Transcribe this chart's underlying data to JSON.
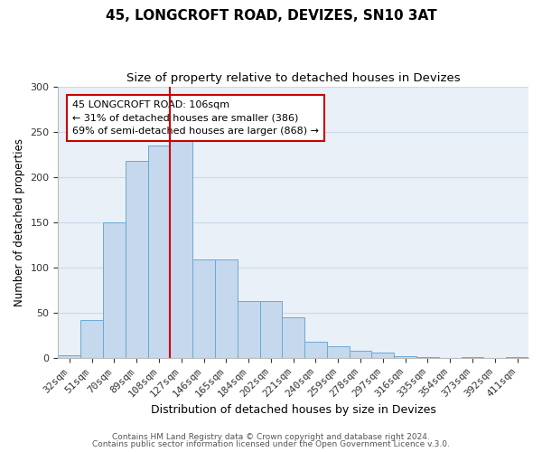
{
  "title": "45, LONGCROFT ROAD, DEVIZES, SN10 3AT",
  "subtitle": "Size of property relative to detached houses in Devizes",
  "xlabel": "Distribution of detached houses by size in Devizes",
  "ylabel": "Number of detached properties",
  "bin_labels": [
    "32sqm",
    "51sqm",
    "70sqm",
    "89sqm",
    "108sqm",
    "127sqm",
    "146sqm",
    "165sqm",
    "184sqm",
    "202sqm",
    "221sqm",
    "240sqm",
    "259sqm",
    "278sqm",
    "297sqm",
    "316sqm",
    "335sqm",
    "354sqm",
    "373sqm",
    "392sqm",
    "411sqm"
  ],
  "bar_values": [
    3,
    42,
    150,
    218,
    235,
    246,
    109,
    109,
    63,
    63,
    45,
    18,
    13,
    8,
    6,
    2,
    1,
    0,
    1,
    0,
    1
  ],
  "bar_color": "#c5d8ed",
  "bar_edge_color": "#6aaad4",
  "vline_color": "#cc0000",
  "annotation_title": "45 LONGCROFT ROAD: 106sqm",
  "annotation_line1": "← 31% of detached houses are smaller (386)",
  "annotation_line2": "69% of semi-detached houses are larger (868) →",
  "annotation_box_facecolor": "#ffffff",
  "annotation_box_edgecolor": "#cc0000",
  "footer1": "Contains HM Land Registry data © Crown copyright and database right 2024.",
  "footer2": "Contains public sector information licensed under the Open Government Licence v.3.0.",
  "ylim": [
    0,
    300
  ],
  "yticks": [
    0,
    50,
    100,
    150,
    200,
    250,
    300
  ],
  "grid_color": "#ccd8e8",
  "background_color": "#eaf0f8",
  "title_fontsize": 11,
  "subtitle_fontsize": 9.5,
  "ylabel_fontsize": 8.5,
  "xlabel_fontsize": 9,
  "tick_fontsize": 8,
  "footer_fontsize": 6.5
}
